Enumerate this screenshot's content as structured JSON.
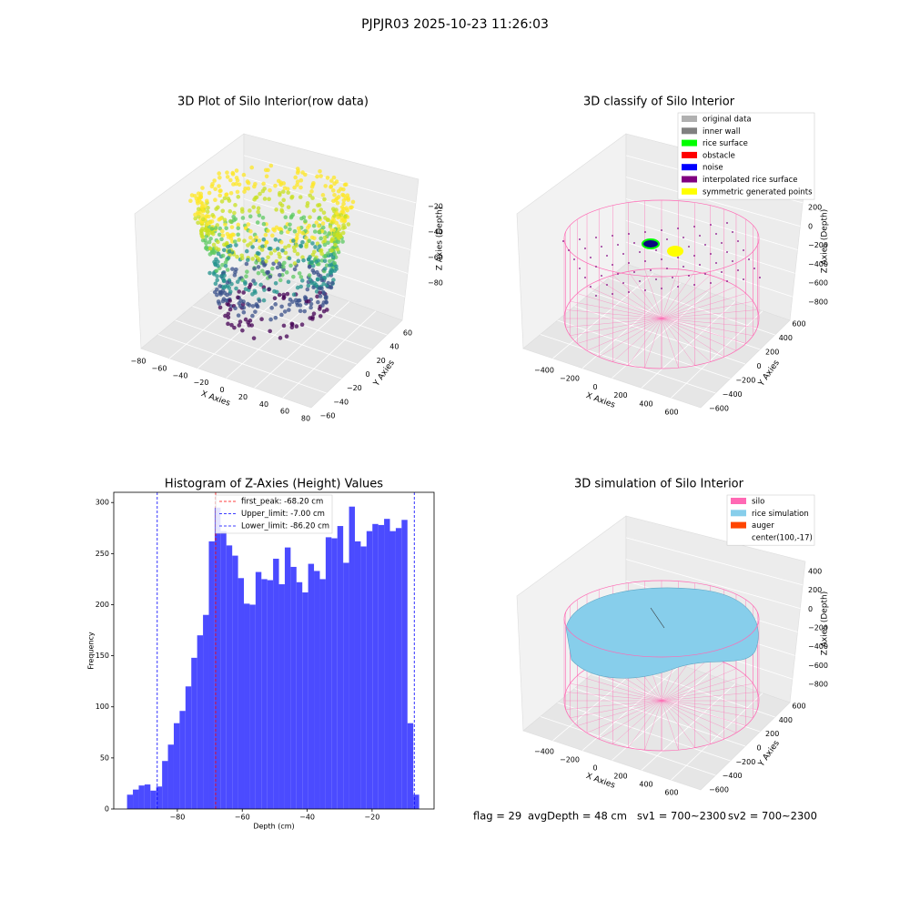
{
  "suptitle": "PJPJR03 2025-10-23 11:26:03",
  "chart_data": [
    {
      "type": "scatter3d",
      "title": "3D Plot of Silo Interior(row data)",
      "xlabel": "X Axies",
      "ylabel": "Y Axies",
      "zlabel": "Z Axies (Depth)",
      "xticks": [
        {
          "value": -80,
          "label": "−80"
        },
        {
          "value": -60,
          "label": "−60"
        },
        {
          "value": -40,
          "label": "−40"
        },
        {
          "value": -20,
          "label": "−20"
        },
        0,
        20,
        40,
        60,
        80
      ],
      "yticks": [
        {
          "value": -60,
          "label": "−60"
        },
        {
          "value": -40,
          "label": "−40"
        },
        {
          "value": -20,
          "label": "−20"
        },
        0,
        20,
        40,
        60
      ],
      "zticks": [
        {
          "value": -80,
          "label": "−80"
        },
        {
          "value": -60,
          "label": "−60"
        },
        {
          "value": -40,
          "label": "−40"
        },
        {
          "value": -20,
          "label": "−20"
        }
      ]
    },
    {
      "type": "scatter3d",
      "title": "3D classify of Silo Interior",
      "xlabel": "X Axies",
      "ylabel": "Y Axies",
      "zlabel": "Z Axies (Depth)",
      "legend": [
        {
          "name": "original data",
          "color": "#b0b0b0"
        },
        {
          "name": "inner wall",
          "color": "#808080"
        },
        {
          "name": "rice surface",
          "color": "#00ff00"
        },
        {
          "name": "obstacle",
          "color": "#ff0000"
        },
        {
          "name": "noise",
          "color": "#0000ff"
        },
        {
          "name": "interpolated rice surface",
          "color": "#800080"
        },
        {
          "name": "symmetric generated points",
          "color": "#ffff00"
        }
      ],
      "xticks": [
        {
          "value": -400,
          "label": "−400"
        },
        {
          "value": -200,
          "label": "−200"
        },
        0,
        200,
        400,
        600
      ],
      "yticks": [
        {
          "value": -600,
          "label": "−600"
        },
        {
          "value": -400,
          "label": "−400"
        },
        {
          "value": -200,
          "label": "−200"
        },
        0,
        200,
        400,
        600
      ],
      "zticks": [
        {
          "value": -800,
          "label": "−800"
        },
        {
          "value": -600,
          "label": "−600"
        },
        {
          "value": -400,
          "label": "−400"
        },
        {
          "value": -200,
          "label": "−200"
        },
        0,
        200
      ]
    },
    {
      "type": "histogram",
      "title": "Histogram of Z-Axies (Height) Values",
      "xlabel": "Depth (cm)",
      "ylabel": "Frequency",
      "color": "#4b4bff",
      "bins": [
        -95.5,
        -93.7,
        -91.9,
        -90.1,
        -88.3,
        -86.5,
        -84.7,
        -82.9,
        -81.1,
        -79.3,
        -77.5,
        -75.7,
        -73.9,
        -72.1,
        -70.3,
        -68.5,
        -66.7,
        -64.9,
        -63.1,
        -61.3,
        -59.5,
        -57.7,
        -55.9,
        -54.1,
        -52.3,
        -50.5,
        -48.7,
        -46.9,
        -45.1,
        -43.3,
        -41.5,
        -39.7,
        -37.9,
        -36.1,
        -34.3,
        -32.5,
        -30.7,
        -28.9,
        -27.1,
        -25.3,
        -23.5,
        -21.7,
        -19.9,
        -18.1,
        -16.3,
        -14.5,
        -12.7,
        -10.9,
        -9.1,
        -7.3,
        -5.5
      ],
      "values": [
        14,
        19,
        23,
        24,
        18,
        22,
        47,
        63,
        84,
        96,
        120,
        148,
        170,
        190,
        262,
        295,
        272,
        258,
        248,
        226,
        201,
        200,
        232,
        225,
        224,
        245,
        220,
        256,
        237,
        222,
        212,
        240,
        233,
        225,
        266,
        265,
        277,
        241,
        296,
        262,
        257,
        272,
        279,
        278,
        284,
        272,
        275,
        283,
        84,
        14
      ],
      "lines": [
        {
          "name": "first_peak: -68.20 cm",
          "value": -68.2,
          "color": "#ff0000"
        },
        {
          "name": "Upper_limit: -7.00 cm",
          "value": -7,
          "color": "#0000ff"
        },
        {
          "name": "Lower_limit: -86.20 cm",
          "value": -86.2,
          "color": "#0000ff"
        }
      ],
      "xlim": [
        -99.6,
        -0.9
      ],
      "ylim": [
        0,
        310
      ],
      "xticks": [
        {
          "value": -80,
          "label": "−80"
        },
        {
          "value": -60,
          "label": "−60"
        },
        {
          "value": -40,
          "label": "−40"
        },
        {
          "value": -20,
          "label": "−20"
        }
      ],
      "yticks": [
        0,
        50,
        100,
        150,
        200,
        250,
        300
      ]
    },
    {
      "type": "surface3d",
      "title": "3D simulation of Silo Interior",
      "xlabel": "X Axies",
      "ylabel": "Y Axies",
      "zlabel": "Z Axies (Depth)",
      "legend": [
        {
          "name": "silo",
          "color": "#ff69b4"
        },
        {
          "name": "rice simulation",
          "color": "#87ceeb"
        },
        {
          "name": "auger",
          "color": "#ff4500"
        },
        {
          "name": "center(100,-17)"
        }
      ],
      "xticks": [
        {
          "value": -400,
          "label": "−400"
        },
        {
          "value": -200,
          "label": "−200"
        },
        0,
        200,
        400,
        600
      ],
      "yticks": [
        {
          "value": -600,
          "label": "−600"
        },
        {
          "value": -400,
          "label": "−400"
        },
        {
          "value": -200,
          "label": "−200"
        },
        0,
        200,
        400,
        600
      ],
      "zticks": [
        {
          "value": -800,
          "label": "−800"
        },
        {
          "value": -600,
          "label": "−600"
        },
        {
          "value": -400,
          "label": "−400"
        },
        {
          "value": -200,
          "label": "−200"
        },
        0,
        200,
        400
      ],
      "annotations": [
        "flag = 29",
        "avgDepth = 48 cm",
        "sv1 = 700~2300",
        "sv2 = 700~2300"
      ]
    }
  ]
}
